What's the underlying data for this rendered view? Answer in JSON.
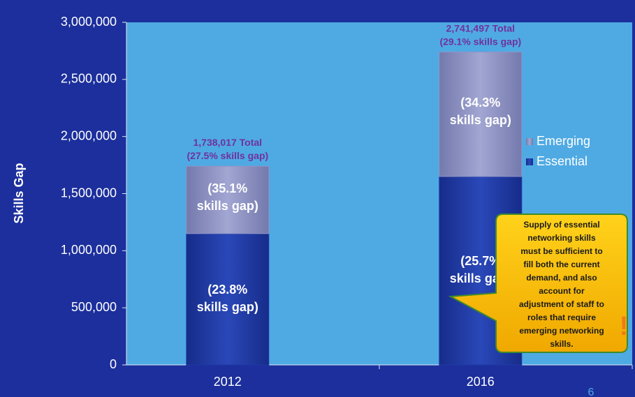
{
  "chart_data": {
    "type": "stacked_bar",
    "ylabel": "Skills Gap",
    "categories": [
      "2012",
      "2016"
    ],
    "series": [
      {
        "name": "Essential",
        "color": "#1f3aa6",
        "values": [
          1150000,
          1650000
        ],
        "segment_labels": [
          [
            "(23.8%",
            "skills gap)"
          ],
          [
            "(25.7%",
            "skills gap)"
          ]
        ]
      },
      {
        "name": "Emerging",
        "color": "#8e93c4",
        "values": [
          590000,
          1090000
        ],
        "segment_labels": [
          [
            "(35.1%",
            "skills gap)"
          ],
          [
            "(34.3%",
            "skills gap)"
          ]
        ]
      }
    ],
    "total_labels": [
      [
        "1,738,017 Total",
        "(27.5% skills gap)"
      ],
      [
        "2,741,497 Total",
        "(29.1% skills gap)"
      ]
    ],
    "ylim": [
      0,
      3000000
    ],
    "yticks": [
      0,
      {
        "value": 500000,
        "label": "500,000"
      },
      {
        "value": 1000000,
        "label": "1,000,000"
      },
      {
        "value": 1500000,
        "label": "1,500,000"
      },
      {
        "value": 2000000,
        "label": "2,000,000"
      },
      {
        "value": 2500000,
        "label": "2,500,000"
      },
      {
        "value": 3000000,
        "label": "3,000,000"
      }
    ],
    "legend": "right",
    "callout": [
      "Supply of essential",
      "networking skills",
      "must be sufficient to",
      "fill both the current",
      "demand, and also",
      "account for",
      "adjustment of staff to",
      "roles that require",
      "emerging networking",
      "skills."
    ],
    "callout_mark": "!",
    "page_number": "6"
  }
}
